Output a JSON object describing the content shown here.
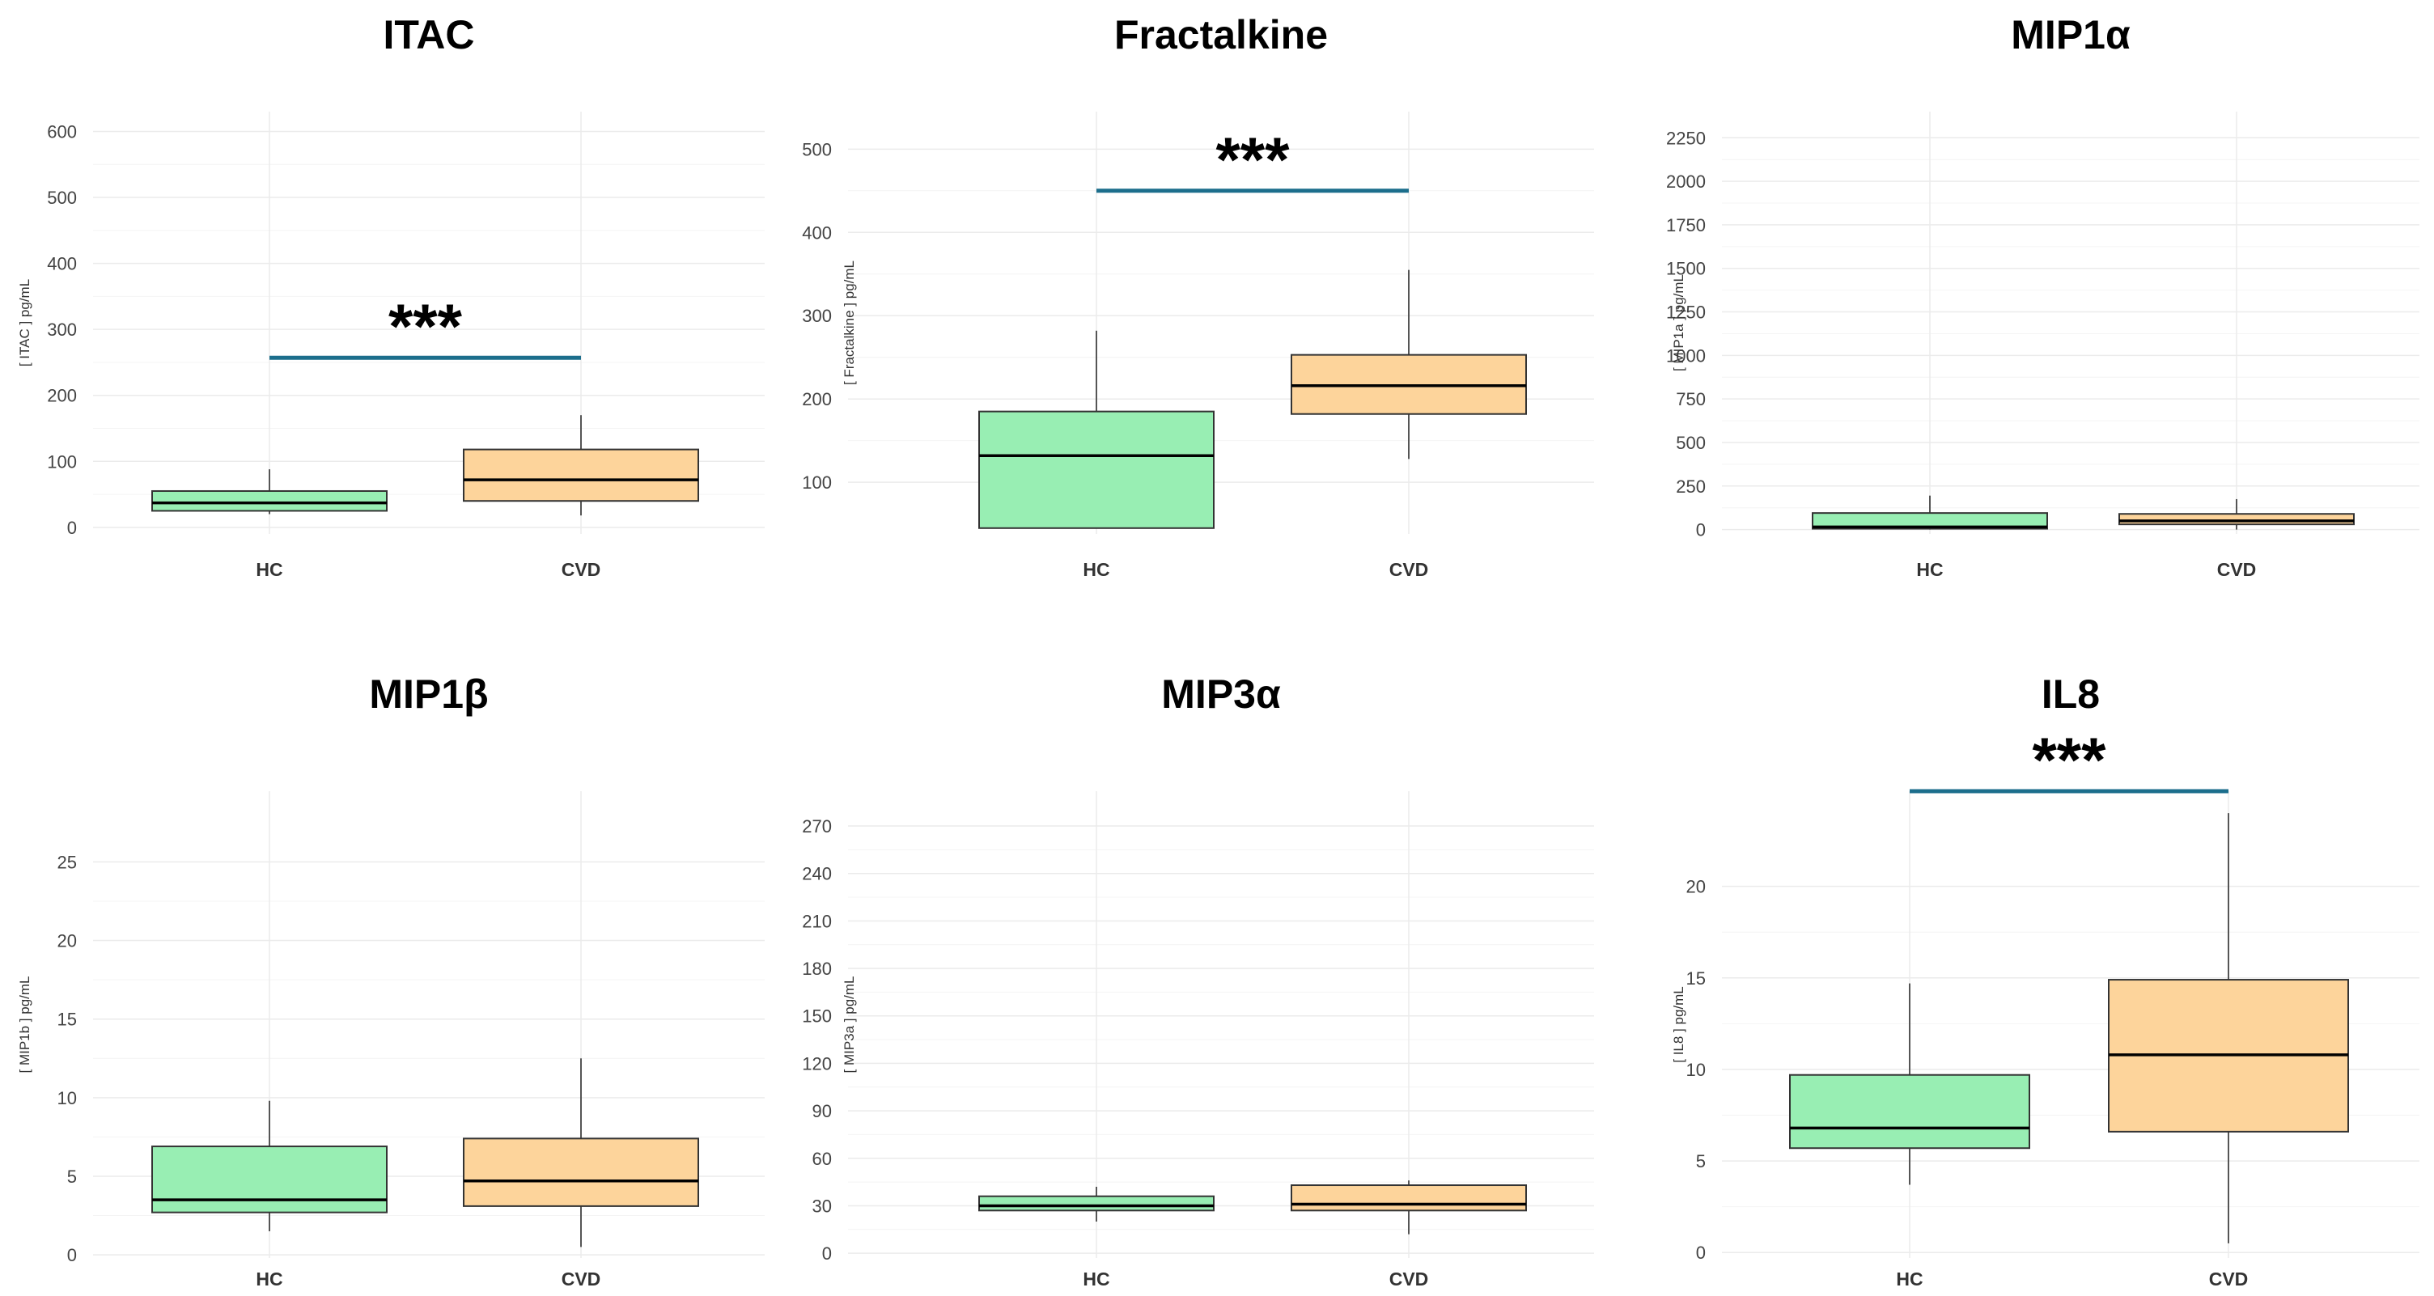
{
  "colors": {
    "hc": "#98eeb3",
    "cvd": "#fdd49b",
    "sigbar": "#1c6e8c"
  },
  "chart_data": [
    {
      "type": "box",
      "title": "ITAC",
      "ylabel": "[ ITAC ] pg/mL",
      "ylim": [
        -10,
        630
      ],
      "yticks": [
        0,
        100,
        200,
        300,
        400,
        500,
        600
      ],
      "categories": [
        "HC",
        "CVD"
      ],
      "boxes": [
        {
          "group": "HC",
          "min": 20,
          "q1": 25,
          "median": 37,
          "q3": 55,
          "max": 88
        },
        {
          "group": "CVD",
          "min": 18,
          "q1": 40,
          "median": 72,
          "q3": 118,
          "max": 170
        }
      ],
      "significance": {
        "label": "***",
        "y": 257
      }
    },
    {
      "type": "box",
      "title": "Fractalkine",
      "ylabel": "[ Fractalkine ] pg/mL",
      "ylim": [
        38,
        545
      ],
      "yticks": [
        100,
        200,
        300,
        400,
        500
      ],
      "categories": [
        "HC",
        "CVD"
      ],
      "boxes": [
        {
          "group": "HC",
          "min": 45,
          "q1": 45,
          "median": 132,
          "q3": 185,
          "max": 282
        },
        {
          "group": "CVD",
          "min": 128,
          "q1": 182,
          "median": 216,
          "q3": 253,
          "max": 355
        }
      ],
      "significance": {
        "label": "***",
        "y": 450
      }
    },
    {
      "type": "box",
      "title": "MIP1α",
      "ylabel": "[ MIP1a ] pg/mL",
      "ylim": [
        -25,
        2400
      ],
      "yticks": [
        0,
        250,
        500,
        750,
        1000,
        1250,
        1500,
        1750,
        2000,
        2250
      ],
      "categories": [
        "HC",
        "CVD"
      ],
      "boxes": [
        {
          "group": "HC",
          "min": 0,
          "q1": 5,
          "median": 15,
          "q3": 95,
          "max": 195
        },
        {
          "group": "CVD",
          "min": 0,
          "q1": 30,
          "median": 50,
          "q3": 90,
          "max": 175
        }
      ],
      "significance": null
    },
    {
      "type": "box",
      "title": "MIP1β",
      "ylabel": "[ MIP1b ] pg/mL",
      "ylim": [
        -0.2,
        29.5
      ],
      "yticks": [
        0,
        5,
        10,
        15,
        20,
        25
      ],
      "categories": [
        "HC",
        "CVD"
      ],
      "boxes": [
        {
          "group": "HC",
          "min": 1.5,
          "q1": 2.7,
          "median": 3.5,
          "q3": 6.9,
          "max": 9.8
        },
        {
          "group": "CVD",
          "min": 0.5,
          "q1": 3.1,
          "median": 4.7,
          "q3": 7.4,
          "max": 12.5
        }
      ],
      "significance": null
    },
    {
      "type": "box",
      "title": "MIP3α",
      "ylabel": "[ MIP3a ] pg/mL",
      "ylim": [
        -3,
        292
      ],
      "yticks": [
        0,
        30,
        60,
        90,
        120,
        150,
        180,
        210,
        240,
        270
      ],
      "categories": [
        "HC",
        "CVD"
      ],
      "boxes": [
        {
          "group": "HC",
          "min": 20,
          "q1": 27,
          "median": 30,
          "q3": 36,
          "max": 42
        },
        {
          "group": "CVD",
          "min": 12,
          "q1": 27,
          "median": 31,
          "q3": 43,
          "max": 46
        }
      ],
      "significance": null
    },
    {
      "type": "box",
      "title": "IL8",
      "ylabel": "[ IL8 ] pg/mL",
      "ylim": [
        -0.3,
        25.2
      ],
      "yticks": [
        0,
        5,
        10,
        15,
        20
      ],
      "categories": [
        "HC",
        "CVD"
      ],
      "boxes": [
        {
          "group": "HC",
          "min": 3.7,
          "q1": 5.7,
          "median": 6.8,
          "q3": 9.7,
          "max": 14.7
        },
        {
          "group": "CVD",
          "min": 0.5,
          "q1": 6.6,
          "median": 10.8,
          "q3": 14.9,
          "max": 24
        }
      ],
      "significance": {
        "label": "***",
        "y": 25.2
      }
    }
  ]
}
